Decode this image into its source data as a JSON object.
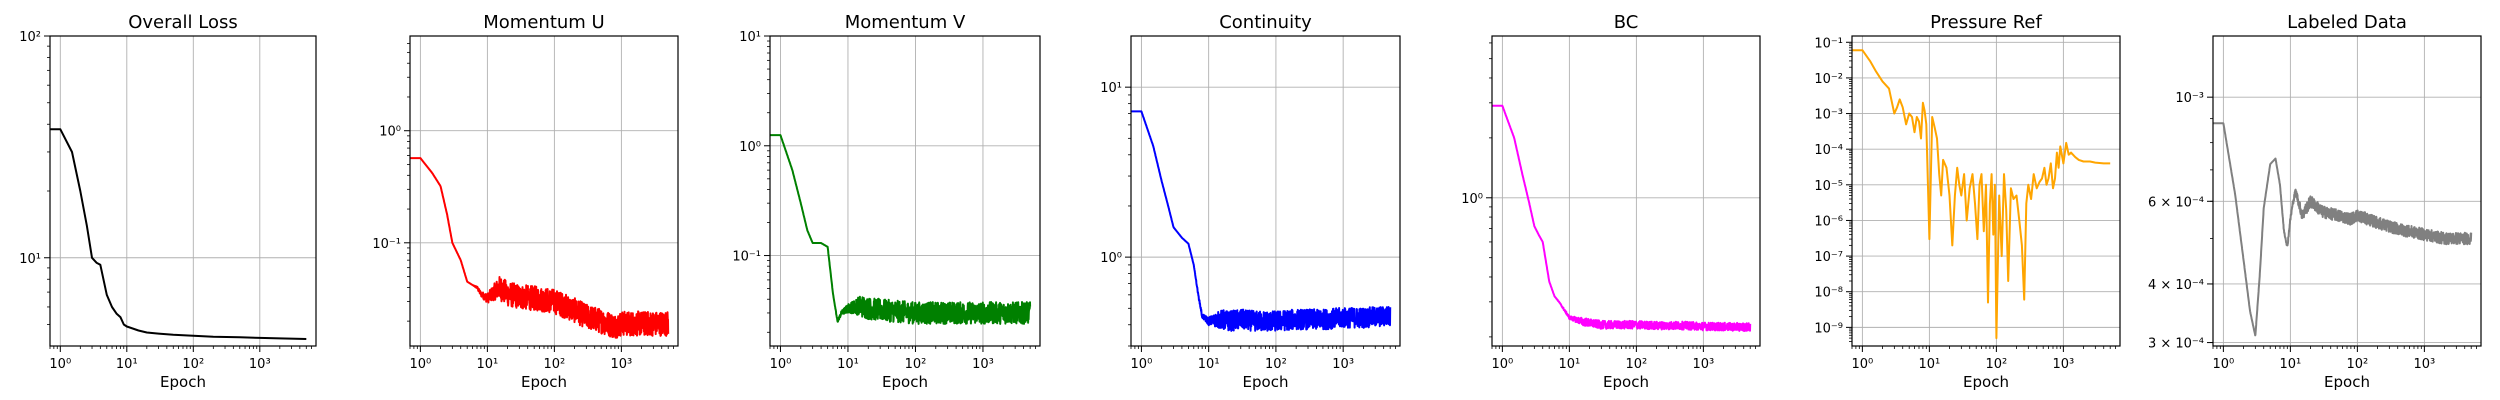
{
  "chart_data": [
    {
      "type": "line",
      "title": "Overall Loss",
      "xlabel": "Epoch",
      "ylabel": "",
      "xscale": "log",
      "yscale": "log",
      "xlim": [
        0.7,
        7000
      ],
      "ylim": [
        4,
        100
      ],
      "grid": true,
      "color": "#000000",
      "xticks": [
        {
          "v": 1,
          "label": "10⁰"
        },
        {
          "v": 10,
          "label": "10¹"
        },
        {
          "v": 100,
          "label": "10²"
        },
        {
          "v": 1000,
          "label": "10³"
        }
      ],
      "yticks": [
        {
          "v": 10,
          "label": "10¹"
        },
        {
          "v": 100,
          "label": "10²"
        }
      ],
      "noise": 0,
      "series": [
        {
          "x": [
            0.7,
            1.0,
            1.5,
            2.0,
            2.5,
            3.0,
            3.5,
            4.0,
            5.0,
            6.0,
            7.0,
            8.0,
            9.0,
            10,
            15,
            20,
            30,
            50,
            100,
            200,
            500,
            1000,
            2000,
            5000
          ],
          "y": [
            38,
            38,
            30,
            20,
            14,
            10,
            9.5,
            9.3,
            6.8,
            6.0,
            5.6,
            5.4,
            5.0,
            4.9,
            4.7,
            4.6,
            4.55,
            4.5,
            4.45,
            4.4,
            4.38,
            4.35,
            4.33,
            4.3
          ]
        }
      ]
    },
    {
      "type": "line",
      "title": "Momentum U",
      "xlabel": "Epoch",
      "ylabel": "",
      "xscale": "log",
      "yscale": "log",
      "xlim": [
        0.7,
        7000
      ],
      "ylim": [
        0.012,
        7
      ],
      "grid": true,
      "color": "#ff0000",
      "xticks": [
        {
          "v": 1,
          "label": "10⁰"
        },
        {
          "v": 10,
          "label": "10¹"
        },
        {
          "v": 100,
          "label": "10²"
        },
        {
          "v": 1000,
          "label": "10³"
        }
      ],
      "yticks": [
        {
          "v": 0.1,
          "label": "10⁻¹"
        },
        {
          "v": 1,
          "label": "10⁰"
        }
      ],
      "noise": 0.22,
      "series": [
        {
          "x": [
            0.7,
            1.0,
            1.5,
            2.0,
            2.5,
            3.0,
            4.0,
            5.0,
            6.0,
            7.0,
            8.0,
            10,
            15,
            20,
            30,
            50,
            100,
            200,
            300,
            500,
            800,
            1000,
            2000,
            5000
          ],
          "y": [
            0.57,
            0.57,
            0.42,
            0.32,
            0.18,
            0.1,
            0.07,
            0.045,
            0.042,
            0.04,
            0.035,
            0.032,
            0.04,
            0.035,
            0.033,
            0.032,
            0.03,
            0.025,
            0.022,
            0.02,
            0.018,
            0.019,
            0.019,
            0.019
          ]
        }
      ]
    },
    {
      "type": "line",
      "title": "Momentum V",
      "xlabel": "Epoch",
      "ylabel": "",
      "xscale": "log",
      "yscale": "log",
      "xlim": [
        0.7,
        7000
      ],
      "ylim": [
        0.015,
        10
      ],
      "grid": true,
      "color": "#008000",
      "xticks": [
        {
          "v": 1,
          "label": "10⁰"
        },
        {
          "v": 10,
          "label": "10¹"
        },
        {
          "v": 100,
          "label": "10²"
        },
        {
          "v": 1000,
          "label": "10³"
        }
      ],
      "yticks": [
        {
          "v": 0.1,
          "label": "10⁻¹"
        },
        {
          "v": 1,
          "label": "10⁰"
        },
        {
          "v": 10,
          "label": "10¹"
        }
      ],
      "noise": 0.2,
      "series": [
        {
          "x": [
            0.7,
            1.0,
            1.5,
            2.0,
            2.5,
            3.0,
            4.0,
            5.0,
            6.0,
            7.0,
            8.0,
            10,
            15,
            20,
            30,
            50,
            100,
            200,
            500,
            1000,
            2000,
            5000
          ],
          "y": [
            1.25,
            1.25,
            0.6,
            0.3,
            0.17,
            0.13,
            0.13,
            0.12,
            0.045,
            0.025,
            0.03,
            0.033,
            0.035,
            0.033,
            0.032,
            0.031,
            0.03,
            0.03,
            0.03,
            0.03,
            0.03,
            0.03
          ]
        }
      ]
    },
    {
      "type": "line",
      "title": "Continuity",
      "xlabel": "Epoch",
      "ylabel": "",
      "xscale": "log",
      "yscale": "log",
      "xlim": [
        0.7,
        7000
      ],
      "ylim": [
        0.3,
        20
      ],
      "grid": true,
      "color": "#0000ff",
      "xticks": [
        {
          "v": 1,
          "label": "10⁰"
        },
        {
          "v": 10,
          "label": "10¹"
        },
        {
          "v": 100,
          "label": "10²"
        },
        {
          "v": 1000,
          "label": "10³"
        }
      ],
      "yticks": [
        {
          "v": 1,
          "label": "10⁰"
        },
        {
          "v": 10,
          "label": "10¹"
        }
      ],
      "noise": 0.12,
      "series": [
        {
          "x": [
            0.7,
            1.0,
            1.5,
            2.0,
            2.5,
            3.0,
            4.0,
            5.0,
            6.0,
            7.0,
            8.0,
            10,
            15,
            20,
            30,
            50,
            100,
            200,
            500,
            1000,
            2000,
            5000
          ],
          "y": [
            7.2,
            7.2,
            4.5,
            2.8,
            2.0,
            1.5,
            1.3,
            1.2,
            0.9,
            0.6,
            0.45,
            0.42,
            0.43,
            0.42,
            0.43,
            0.42,
            0.42,
            0.43,
            0.43,
            0.44,
            0.44,
            0.45
          ]
        }
      ]
    },
    {
      "type": "line",
      "title": "BC",
      "xlabel": "Epoch",
      "ylabel": "",
      "xscale": "log",
      "yscale": "log",
      "xlim": [
        0.7,
        7000
      ],
      "ylim": [
        0.18,
        6.5
      ],
      "grid": true,
      "color": "#ff00ff",
      "xticks": [
        {
          "v": 1,
          "label": "10⁰"
        },
        {
          "v": 10,
          "label": "10¹"
        },
        {
          "v": 100,
          "label": "10²"
        },
        {
          "v": 1000,
          "label": "10³"
        }
      ],
      "yticks": [
        {
          "v": 1,
          "label": "10⁰"
        }
      ],
      "noise": 0.04,
      "series": [
        {
          "x": [
            0.7,
            1.0,
            1.5,
            2.0,
            2.5,
            3.0,
            3.5,
            4.0,
            5.0,
            6.0,
            7.0,
            8.0,
            10,
            15,
            20,
            30,
            50,
            100,
            200,
            500,
            1000,
            2000,
            5000
          ],
          "y": [
            2.9,
            2.9,
            2.0,
            1.3,
            0.95,
            0.72,
            0.65,
            0.6,
            0.38,
            0.32,
            0.3,
            0.28,
            0.25,
            0.24,
            0.235,
            0.23,
            0.23,
            0.23,
            0.228,
            0.228,
            0.226,
            0.225,
            0.224
          ]
        }
      ]
    },
    {
      "type": "line",
      "title": "Pressure Ref",
      "xlabel": "Epoch",
      "ylabel": "",
      "xscale": "log",
      "yscale": "log",
      "xlim": [
        0.7,
        7000
      ],
      "ylim": [
        3e-10,
        0.15
      ],
      "grid": true,
      "color": "#ffa500",
      "xticks": [
        {
          "v": 1,
          "label": "10⁰"
        },
        {
          "v": 10,
          "label": "10¹"
        },
        {
          "v": 100,
          "label": "10²"
        },
        {
          "v": 1000,
          "label": "10³"
        }
      ],
      "yticks": [
        {
          "v": 1e-09,
          "label": "10⁻⁹"
        },
        {
          "v": 1e-08,
          "label": "10⁻⁸"
        },
        {
          "v": 1e-07,
          "label": "10⁻⁷"
        },
        {
          "v": 1e-06,
          "label": "10⁻⁶"
        },
        {
          "v": 1e-05,
          "label": "10⁻⁵"
        },
        {
          "v": 0.0001,
          "label": "10⁻⁴"
        },
        {
          "v": 0.001,
          "label": "10⁻³"
        },
        {
          "v": 0.01,
          "label": "10⁻²"
        },
        {
          "v": 0.1,
          "label": "10⁻¹"
        }
      ],
      "noise": 0,
      "series": [
        {
          "x": [
            0.7,
            1.0,
            1.3,
            1.6,
            2.0,
            2.5,
            3.0,
            3.3,
            3.6,
            4.0,
            4.5,
            5.0,
            5.5,
            6.0,
            6.5,
            7.0,
            7.5,
            8.0,
            8.5,
            9.0,
            10,
            11,
            12,
            13,
            14,
            15,
            16,
            18,
            20,
            22,
            24,
            26,
            28,
            30,
            33,
            36,
            40,
            44,
            48,
            52,
            56,
            60,
            65,
            70,
            75,
            80,
            85,
            90,
            95,
            100,
            110,
            120,
            130,
            140,
            150,
            165,
            180,
            200,
            220,
            240,
            260,
            280,
            300,
            330,
            360,
            400,
            440,
            480,
            520,
            560,
            600,
            650,
            700,
            750,
            800,
            850,
            900,
            1000,
            1100,
            1200,
            1300,
            1500,
            1700,
            2000,
            2500,
            3000,
            4000,
            5000
          ],
          "y": [
            0.06,
            0.06,
            0.03,
            0.015,
            0.008,
            0.005,
            0.001,
            0.0015,
            0.0025,
            0.0015,
            0.0005,
            0.001,
            0.0008,
            0.0003,
            0.0008,
            0.0006,
            0.0002,
            0.002,
            0.0012,
            0.0005,
            3e-07,
            0.0008,
            0.0004,
            0.0002,
            2e-05,
            5e-06,
            5e-05,
            3e-05,
            5e-06,
            2e-07,
            5e-06,
            3e-05,
            1e-05,
            5e-06,
            2e-05,
            1e-06,
            8e-06,
            2e-05,
            3e-06,
            3e-07,
            1e-05,
            2e-05,
            5e-07,
            1e-05,
            5e-09,
            3e-06,
            2e-05,
            4e-07,
            1e-05,
            5e-10,
            5e-06,
            1e-07,
            2e-05,
            2e-06,
            2e-08,
            8e-06,
            4e-06,
            5e-06,
            1e-06,
            2e-07,
            6e-09,
            3e-06,
            1e-05,
            4e-06,
            2e-05,
            8e-06,
            1.2e-05,
            1.5e-05,
            3e-05,
            1e-05,
            1.5e-05,
            4e-05,
            8e-06,
            1.5e-05,
            8e-05,
            3e-05,
            0.00012,
            4e-05,
            0.00015,
            7e-05,
            8e-05,
            6e-05,
            5e-05,
            4.5e-05,
            4.5e-05,
            4.2e-05,
            4e-05,
            4e-05
          ]
        }
      ]
    },
    {
      "type": "line",
      "title": "Labeled Data",
      "xlabel": "Epoch",
      "ylabel": "",
      "xscale": "log",
      "yscale": "log",
      "xlim": [
        0.7,
        7000
      ],
      "ylim": [
        0.000295,
        0.00135
      ],
      "grid": true,
      "color": "#808080",
      "xticks": [
        {
          "v": 1,
          "label": "10⁰"
        },
        {
          "v": 10,
          "label": "10¹"
        },
        {
          "v": 100,
          "label": "10²"
        },
        {
          "v": 1000,
          "label": "10³"
        }
      ],
      "yticks": [
        {
          "v": 0.0003,
          "label": "3 × 10⁻⁴"
        },
        {
          "v": 0.0004,
          "label": "4 × 10⁻⁴"
        },
        {
          "v": 0.0006,
          "label": "6 × 10⁻⁴"
        },
        {
          "v": 0.001,
          "label": "10⁻³"
        }
      ],
      "noise": 0.025,
      "series": [
        {
          "x": [
            0.7,
            1.0,
            1.5,
            2.0,
            2.5,
            3.0,
            3.5,
            4.0,
            5.0,
            6.0,
            7.0,
            8.0,
            9.0,
            10,
            11,
            12,
            15,
            20,
            30,
            50,
            80,
            100,
            200,
            300,
            500,
            1000,
            2000,
            5000
          ],
          "y": [
            0.00088,
            0.00088,
            0.00062,
            0.00045,
            0.00035,
            0.00031,
            0.00042,
            0.00058,
            0.00072,
            0.00074,
            0.00065,
            0.00052,
            0.00048,
            0.00055,
            0.0006,
            0.00063,
            0.00056,
            0.0006,
            0.00057,
            0.00056,
            0.00055,
            0.00056,
            0.00054,
            0.00053,
            0.00052,
            0.00051,
            0.0005,
            0.0005
          ]
        }
      ]
    }
  ]
}
